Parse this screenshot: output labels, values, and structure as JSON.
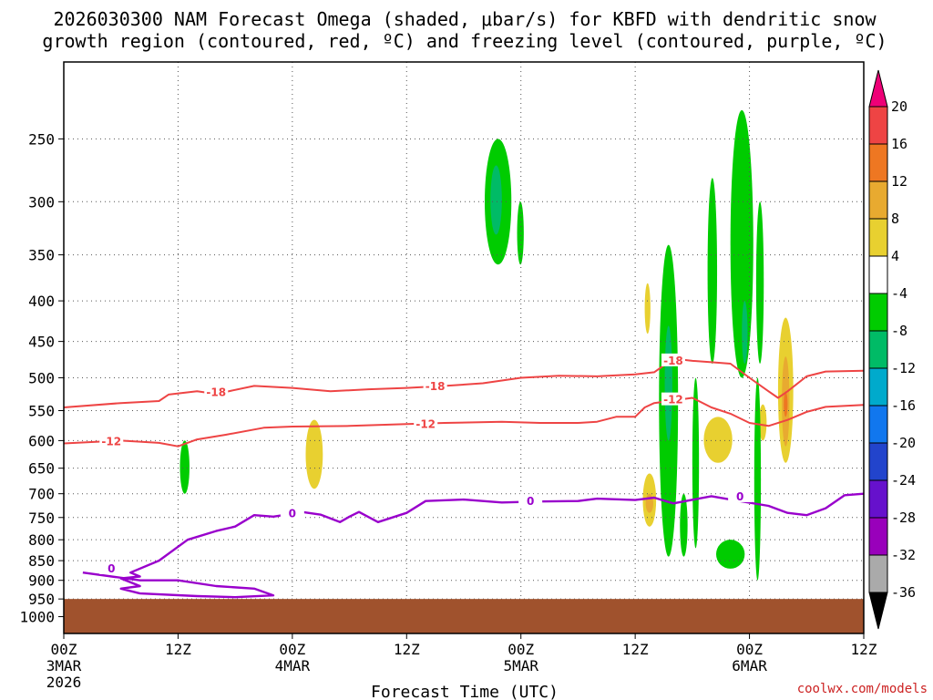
{
  "title": {
    "line1": "2026030300 NAM Forecast Omega (shaded, μbar/s) for KBFD with dendritic snow",
    "line2": "growth region (contoured, red, ºC) and freezing level (contoured, purple, ºC)"
  },
  "credit": "coolwx.com/models",
  "colors": {
    "frame": "#000000",
    "grid": "#555555",
    "ground": "#a0522d",
    "dgz_contour": "#ee4444",
    "freezing_contour": "#9900cc"
  },
  "chart_data": {
    "type": "heatmap",
    "title": "2026030300 NAM Forecast Omega (shaded, μbar/s) for KBFD with dendritic snow growth region (contoured, red, ºC) and freezing level (contoured, purple, ºC)",
    "xlabel": "Forecast Time (UTC)",
    "ylabel": "",
    "x_hours_range": [
      0,
      84
    ],
    "x_ticks": [
      {
        "hour": 0,
        "label": "00Z",
        "sub": "3MAR",
        "sub2": "2026"
      },
      {
        "hour": 12,
        "label": "12Z",
        "sub": "",
        "sub2": ""
      },
      {
        "hour": 24,
        "label": "00Z",
        "sub": "4MAR",
        "sub2": ""
      },
      {
        "hour": 36,
        "label": "12Z",
        "sub": "",
        "sub2": ""
      },
      {
        "hour": 48,
        "label": "00Z",
        "sub": "5MAR",
        "sub2": ""
      },
      {
        "hour": 60,
        "label": "12Z",
        "sub": "",
        "sub2": ""
      },
      {
        "hour": 72,
        "label": "00Z",
        "sub": "6MAR",
        "sub2": ""
      },
      {
        "hour": 84,
        "label": "12Z",
        "sub": "",
        "sub2": ""
      }
    ],
    "y_axis": "pressure (mb), log scale",
    "ylim": [
      1050,
      200
    ],
    "y_ticks": [
      250,
      300,
      350,
      400,
      450,
      500,
      550,
      600,
      650,
      700,
      750,
      800,
      850,
      900,
      950,
      1000
    ],
    "grid": true,
    "ground_top_mb": 950,
    "contours": [
      {
        "label": "-18",
        "kind": "dgz",
        "points": [
          [
            0,
            545
          ],
          [
            6,
            538
          ],
          [
            10,
            535
          ],
          [
            11,
            525
          ],
          [
            14,
            520
          ],
          [
            16,
            524
          ],
          [
            20,
            512
          ],
          [
            24,
            515
          ],
          [
            28,
            520
          ],
          [
            32,
            517
          ],
          [
            36,
            515
          ],
          [
            40,
            512
          ],
          [
            44,
            508
          ],
          [
            48,
            500
          ],
          [
            52,
            497
          ],
          [
            56,
            498
          ],
          [
            60,
            495
          ],
          [
            62,
            492
          ],
          [
            64,
            473
          ],
          [
            66,
            476
          ],
          [
            68,
            478
          ],
          [
            70,
            480
          ],
          [
            72,
            500
          ],
          [
            74,
            520
          ],
          [
            75,
            530
          ],
          [
            76,
            520
          ],
          [
            78,
            498
          ],
          [
            80,
            491
          ],
          [
            84,
            490
          ]
        ],
        "labels_at": [
          [
            16,
            522
          ],
          [
            39,
            513
          ],
          [
            64,
            476
          ]
        ]
      },
      {
        "label": "-12",
        "kind": "dgz",
        "points": [
          [
            0,
            605
          ],
          [
            6,
            600
          ],
          [
            10,
            604
          ],
          [
            12,
            610
          ],
          [
            14,
            598
          ],
          [
            17,
            590
          ],
          [
            21,
            578
          ],
          [
            24,
            576
          ],
          [
            30,
            575
          ],
          [
            36,
            572
          ],
          [
            40,
            570
          ],
          [
            46,
            568
          ],
          [
            50,
            570
          ],
          [
            54,
            570
          ],
          [
            56,
            568
          ],
          [
            58,
            560
          ],
          [
            60,
            560
          ],
          [
            61,
            545
          ],
          [
            62,
            538
          ],
          [
            66,
            530
          ],
          [
            68,
            545
          ],
          [
            70,
            555
          ],
          [
            72,
            570
          ],
          [
            74,
            575
          ],
          [
            76,
            565
          ],
          [
            78,
            552
          ],
          [
            80,
            544
          ],
          [
            84,
            541
          ]
        ],
        "labels_at": [
          [
            5,
            602
          ],
          [
            38,
            572
          ],
          [
            64,
            533
          ]
        ]
      },
      {
        "label": "0",
        "kind": "freezing",
        "points": [
          [
            2,
            880
          ],
          [
            8,
            900
          ],
          [
            12,
            900
          ],
          [
            16,
            915
          ],
          [
            20,
            922
          ],
          [
            22,
            940
          ],
          [
            18,
            945
          ],
          [
            14,
            942
          ],
          [
            8,
            935
          ],
          [
            6,
            922
          ],
          [
            8,
            915
          ],
          [
            6,
            895
          ],
          [
            8,
            890
          ],
          [
            7,
            880
          ],
          [
            10,
            850
          ],
          [
            13,
            800
          ],
          [
            16,
            780
          ],
          [
            18,
            770
          ],
          [
            20,
            745
          ],
          [
            22,
            748
          ],
          [
            24,
            742
          ],
          [
            25,
            738
          ],
          [
            27,
            744
          ],
          [
            29,
            760
          ],
          [
            30,
            748
          ],
          [
            31,
            738
          ],
          [
            33,
            760
          ],
          [
            36,
            740
          ],
          [
            38,
            715
          ],
          [
            42,
            712
          ],
          [
            46,
            718
          ],
          [
            50,
            716
          ],
          [
            54,
            715
          ],
          [
            56,
            710
          ],
          [
            60,
            713
          ],
          [
            62,
            708
          ],
          [
            64,
            720
          ],
          [
            68,
            705
          ],
          [
            70,
            712
          ],
          [
            74,
            725
          ],
          [
            76,
            740
          ],
          [
            78,
            745
          ],
          [
            80,
            730
          ],
          [
            82,
            703
          ],
          [
            84,
            700
          ]
        ],
        "labels_at": [
          [
            24,
            742
          ],
          [
            49,
            716
          ],
          [
            71,
            706
          ],
          [
            5,
            870
          ]
        ]
      }
    ],
    "omega_legend": {
      "levels": [
        20,
        16,
        12,
        8,
        4,
        -4,
        -8,
        -12,
        -16,
        -20,
        -24,
        -28,
        -32,
        -36
      ],
      "colors": [
        "#ee0077",
        "#ee4444",
        "#ee7722",
        "#e8aa30",
        "#e8d030",
        "#ffffff",
        "#00cc00",
        "#00bb66",
        "#00aacc",
        "#1177ee",
        "#2244cc",
        "#6611cc",
        "#9900bb",
        "#aaaaaa",
        "#000000"
      ]
    },
    "omega_regions": [
      {
        "value": -8,
        "hours": [
          12.2,
          13.2
        ],
        "mb": [
          600,
          700
        ]
      },
      {
        "value": 4,
        "hours": [
          25.4,
          27.2
        ],
        "mb": [
          565,
          690
        ]
      },
      {
        "value": -8,
        "hours": [
          44.2,
          47.0
        ],
        "mb": [
          250,
          360
        ]
      },
      {
        "value": -12,
        "hours": [
          44.8,
          46.0
        ],
        "mb": [
          270,
          330
        ]
      },
      {
        "value": -8,
        "hours": [
          47.6,
          48.3
        ],
        "mb": [
          300,
          360
        ]
      },
      {
        "value": 4,
        "hours": [
          61.0,
          61.6
        ],
        "mb": [
          380,
          440
        ]
      },
      {
        "value": -8,
        "hours": [
          62.5,
          64.5
        ],
        "mb": [
          340,
          840
        ]
      },
      {
        "value": -12,
        "hours": [
          63.1,
          63.9
        ],
        "mb": [
          430,
          600
        ]
      },
      {
        "value": 4,
        "hours": [
          60.8,
          62.2
        ],
        "mb": [
          660,
          770
        ]
      },
      {
        "value": 8,
        "hours": [
          61.1,
          61.9
        ],
        "mb": [
          700,
          740
        ]
      },
      {
        "value": -8,
        "hours": [
          66.0,
          66.7
        ],
        "mb": [
          500,
          820
        ]
      },
      {
        "value": -8,
        "hours": [
          64.7,
          65.5
        ],
        "mb": [
          700,
          840
        ]
      },
      {
        "value": -8,
        "hours": [
          67.6,
          68.6
        ],
        "mb": [
          280,
          480
        ]
      },
      {
        "value": -8,
        "hours": [
          70.0,
          72.4
        ],
        "mb": [
          230,
          500
        ]
      },
      {
        "value": -8,
        "hours": [
          72.7,
          73.5
        ],
        "mb": [
          300,
          480
        ]
      },
      {
        "value": -12,
        "hours": [
          71.2,
          71.8
        ],
        "mb": [
          400,
          480
        ]
      },
      {
        "value": 4,
        "hours": [
          67.2,
          70.2
        ],
        "mb": [
          560,
          640
        ]
      },
      {
        "value": 4,
        "hours": [
          73.0,
          73.8
        ],
        "mb": [
          540,
          600
        ]
      },
      {
        "value": 4,
        "hours": [
          75.0,
          76.6
        ],
        "mb": [
          420,
          640
        ]
      },
      {
        "value": 8,
        "hours": [
          75.4,
          76.2
        ],
        "mb": [
          470,
          610
        ]
      },
      {
        "value": 12,
        "hours": [
          75.6,
          76.0
        ],
        "mb": [
          520,
          560
        ]
      },
      {
        "value": -8,
        "hours": [
          72.5,
          73.2
        ],
        "mb": [
          500,
          900
        ]
      },
      {
        "value": -8,
        "hours": [
          68.5,
          71.5
        ],
        "mb": [
          800,
          870
        ]
      }
    ]
  }
}
